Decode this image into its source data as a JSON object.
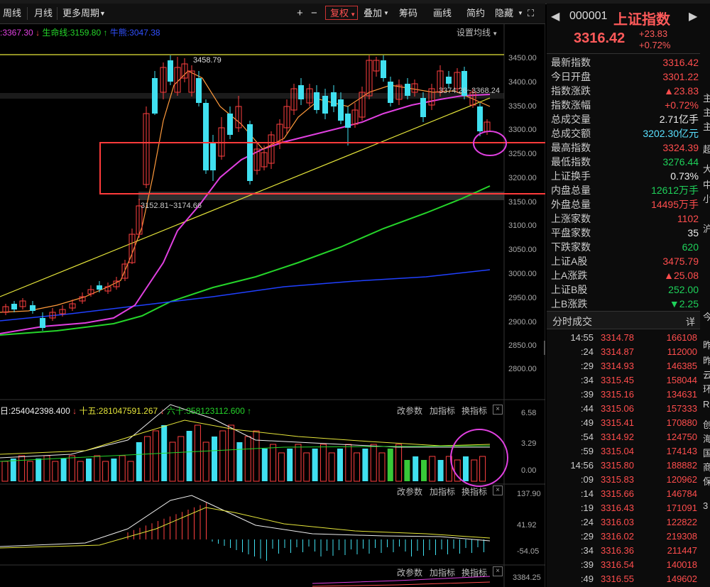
{
  "toolbar": {
    "week": "周线",
    "month": "月线",
    "more_period": "更多周期",
    "plus": "+",
    "minus": "−",
    "fuquan": "复权",
    "diejia": "叠加",
    "chouma": "筹码",
    "huaxian": "画线",
    "jianyue": "简约",
    "yincang": "隐藏"
  },
  "legend": {
    "ma_value": ":3367.30",
    "shengming_label": "生命线:",
    "shengming_value": "3159.80",
    "blue_line": "牛熊:3047.38"
  },
  "setting_ma": "设置均线",
  "price_axis": [
    "3450.00",
    "3400.00",
    "3350.00",
    "3300.00",
    "3250.00",
    "3200.00",
    "3150.00",
    "3100.00",
    "3050.00",
    "3000.00",
    "2950.00",
    "2900.00",
    "2850.00",
    "2800.00"
  ],
  "annotations": {
    "high": "3458.79",
    "range": "3152.81~3174.66",
    "ma_pair": "3374.26~3368.24"
  },
  "vol_panel": {
    "legend_a": "日:254042398.400",
    "legend_b": "十五:281047591.267",
    "legend_c": "六十:358123112.600",
    "axis": [
      "6.58",
      "3.29",
      "0.00"
    ],
    "btn_param": "改参数",
    "btn_add": "加指标",
    "btn_switch": "换指标"
  },
  "macd_panel": {
    "axis": [
      "137.90",
      "41.92",
      "-54.05"
    ],
    "btn_param": "改参数",
    "btn_add": "加指标",
    "btn_switch": "换指标"
  },
  "panel3": {
    "axis": [
      "3384.25"
    ],
    "btn_param": "改参数",
    "btn_add": "加指标",
    "btn_switch": "换指标"
  },
  "quote": {
    "code": "000001",
    "name": "上证指数",
    "price": "3316.42",
    "change": "+23.83",
    "change_pct": "+0.72%",
    "rows": [
      {
        "label": "最新指数",
        "value": "3316.42",
        "color": "red"
      },
      {
        "label": "今日开盘",
        "value": "3301.22",
        "color": "red"
      },
      {
        "label": "指数涨跌",
        "value": "▲23.83",
        "color": "red"
      },
      {
        "label": "指数涨幅",
        "value": "+0.72%",
        "color": "red"
      },
      {
        "label": "总成交量",
        "value": "2.71亿手",
        "color": "white"
      },
      {
        "label": "总成交额",
        "value": "3202.30亿元",
        "color": "cyan"
      },
      {
        "label": "最高指数",
        "value": "3324.39",
        "color": "red"
      },
      {
        "label": "最低指数",
        "value": "3276.44",
        "color": "green"
      },
      {
        "label": "上证换手",
        "value": "0.73%",
        "color": "white"
      },
      {
        "label": "内盘总量",
        "value": "12612万手",
        "color": "green"
      },
      {
        "label": "外盘总量",
        "value": "14495万手",
        "color": "red"
      },
      {
        "label": "上涨家数",
        "value": "1102",
        "color": "red"
      },
      {
        "label": "平盘家数",
        "value": "35",
        "color": "white"
      },
      {
        "label": "下跌家数",
        "value": "620",
        "color": "green"
      },
      {
        "label": "上证A股",
        "value": "3475.79",
        "color": "red"
      },
      {
        "label": "上A涨跌",
        "value": "▲25.08",
        "color": "red"
      },
      {
        "label": "上证B股",
        "value": "252.00",
        "color": "green"
      },
      {
        "label": "上B涨跌",
        "value": "▼2.25",
        "color": "green"
      }
    ]
  },
  "ticks": {
    "title": "分时成交",
    "detail": "详",
    "rows": [
      {
        "t": "14:55",
        "p": "3314.78",
        "v": "166108"
      },
      {
        "t": ":24",
        "p": "3314.87",
        "v": "112000"
      },
      {
        "t": ":29",
        "p": "3314.93",
        "v": "146385"
      },
      {
        "t": ":34",
        "p": "3315.45",
        "v": "158044"
      },
      {
        "t": ":39",
        "p": "3315.16",
        "v": "134631"
      },
      {
        "t": ":44",
        "p": "3315.06",
        "v": "157333"
      },
      {
        "t": ":49",
        "p": "3315.41",
        "v": "170880"
      },
      {
        "t": ":54",
        "p": "3314.92",
        "v": "124750"
      },
      {
        "t": ":59",
        "p": "3315.04",
        "v": "174143"
      },
      {
        "t": "14:56",
        "p": "3315.80",
        "v": "188882"
      },
      {
        "t": ":09",
        "p": "3315.83",
        "v": "120962"
      },
      {
        "t": ":14",
        "p": "3315.66",
        "v": "146784"
      },
      {
        "t": ":19",
        "p": "3316.43",
        "v": "171091"
      },
      {
        "t": ":24",
        "p": "3316.03",
        "v": "122822"
      },
      {
        "t": ":29",
        "p": "3316.02",
        "v": "219308"
      },
      {
        "t": ":34",
        "p": "3316.36",
        "v": "211447"
      },
      {
        "t": ":39",
        "p": "3316.54",
        "v": "140018"
      },
      {
        "t": ":49",
        "p": "3316.55",
        "v": "149602"
      }
    ]
  },
  "edge_chars": [
    "主",
    "主",
    "主",
    "超",
    "大",
    "中",
    "小",
    "沪",
    "今",
    "昨",
    "昨",
    "云",
    "环",
    "R",
    "创",
    "海",
    "国",
    "商",
    "保",
    "3"
  ]
}
